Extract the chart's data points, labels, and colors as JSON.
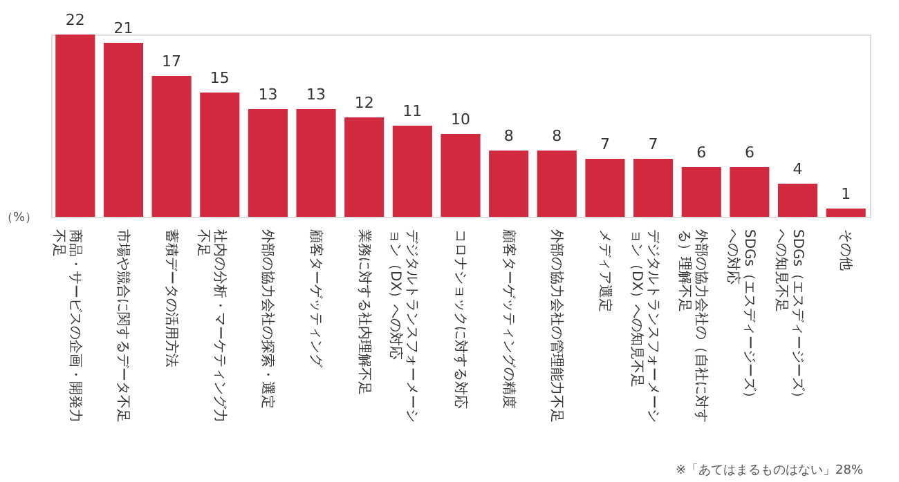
{
  "chart_data": {
    "type": "bar",
    "categories": [
      "商品・サービスの企画・開発力不足",
      "市場や競合に関するデータ不足",
      "蓄積データの活用方法",
      "社内の分析・マーケティング力不足",
      "外部の協力会社の探索・選定",
      "顧客ターゲッティング",
      "業務に対する社内理解不足",
      "デジタルトランスフォーメーション（DX）への対応",
      "コロナショックに対する対応",
      "顧客ターゲッティングの精度",
      "外部の協力会社の管理能力不足",
      "メディア選定",
      "デジタルトランスフォーメーション（DX）への知見不足",
      "外部の協力会社の（自社に対する）理解不足",
      "SDGs（エスディージーズ）への対応",
      "SDGs（エスディージーズ）への知見不足",
      "その他"
    ],
    "values": [
      22,
      21,
      17,
      15,
      13,
      13,
      12,
      11,
      10,
      8,
      8,
      7,
      7,
      6,
      6,
      4,
      1
    ],
    "color": "#d12a3e",
    "ylabel": "（%）",
    "data_labels": true,
    "annotations": [
      "※「あてはまるものはない」28%"
    ]
  }
}
